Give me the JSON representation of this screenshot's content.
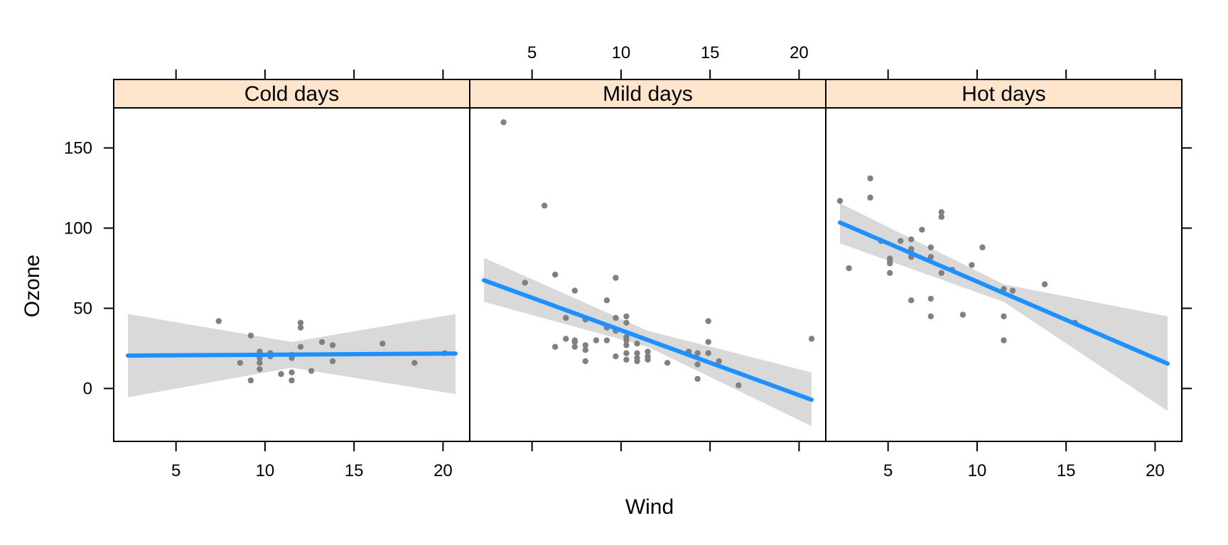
{
  "chart_data": {
    "type": "scatter",
    "xlabel": "Wind",
    "ylabel": "Ozone",
    "xlim": [
      1.5,
      21.5
    ],
    "ylim": [
      -33,
      175
    ],
    "x_ticks": [
      5,
      10,
      15,
      20
    ],
    "y_ticks": [
      0,
      50,
      100,
      150
    ],
    "strip_color": "#ffe5cc",
    "point_color": "#808080",
    "line_color": "#1e90ff",
    "band_color": "#d9d9d9",
    "panels": [
      {
        "title": "Cold days",
        "points": [
          [
            7.4,
            42
          ],
          [
            8.6,
            16
          ],
          [
            9.2,
            33
          ],
          [
            9.2,
            5
          ],
          [
            9.7,
            23
          ],
          [
            9.7,
            19
          ],
          [
            9.7,
            16
          ],
          [
            9.7,
            12
          ],
          [
            10.3,
            20
          ],
          [
            10.3,
            22
          ],
          [
            10.9,
            9
          ],
          [
            11.5,
            19
          ],
          [
            11.5,
            21
          ],
          [
            11.5,
            10
          ],
          [
            11.5,
            5
          ],
          [
            12.0,
            41
          ],
          [
            12.0,
            38
          ],
          [
            12.0,
            26
          ],
          [
            12.6,
            11
          ],
          [
            13.2,
            29
          ],
          [
            13.8,
            27
          ],
          [
            13.8,
            17
          ],
          [
            16.6,
            28
          ],
          [
            18.4,
            16
          ],
          [
            20.1,
            22
          ]
        ],
        "fit": {
          "x": [
            2.3,
            20.7
          ],
          "y": [
            20.5,
            21.8
          ]
        },
        "band": {
          "x": [
            2.3,
            11.5,
            20.7
          ],
          "upper": [
            46.5,
            29,
            46.5
          ],
          "lower": [
            -5.5,
            13,
            -3.5
          ]
        }
      },
      {
        "title": "Mild days",
        "points": [
          [
            3.4,
            166
          ],
          [
            5.7,
            114
          ],
          [
            4.6,
            66
          ],
          [
            6.3,
            71
          ],
          [
            6.9,
            44
          ],
          [
            7.4,
            61
          ],
          [
            6.9,
            31
          ],
          [
            7.4,
            30
          ],
          [
            7.4,
            29
          ],
          [
            7.4,
            26
          ],
          [
            6.3,
            26
          ],
          [
            8.0,
            43
          ],
          [
            8.0,
            27
          ],
          [
            8.0,
            24
          ],
          [
            8.0,
            17
          ],
          [
            8.6,
            30
          ],
          [
            9.2,
            55
          ],
          [
            9.2,
            38
          ],
          [
            9.2,
            30
          ],
          [
            9.7,
            69
          ],
          [
            9.7,
            44
          ],
          [
            9.7,
            36
          ],
          [
            9.7,
            20
          ],
          [
            10.3,
            45
          ],
          [
            10.3,
            41
          ],
          [
            10.3,
            32
          ],
          [
            10.3,
            30
          ],
          [
            10.3,
            27
          ],
          [
            10.3,
            22
          ],
          [
            10.3,
            18
          ],
          [
            10.9,
            28
          ],
          [
            10.9,
            22
          ],
          [
            10.9,
            19
          ],
          [
            10.9,
            17
          ],
          [
            11.5,
            23
          ],
          [
            11.5,
            20
          ],
          [
            11.5,
            18
          ],
          [
            12.6,
            16
          ],
          [
            13.8,
            23
          ],
          [
            14.3,
            22
          ],
          [
            14.3,
            15
          ],
          [
            14.3,
            6
          ],
          [
            14.9,
            42
          ],
          [
            14.9,
            29
          ],
          [
            14.9,
            22
          ],
          [
            15.5,
            17
          ],
          [
            16.6,
            2
          ],
          [
            20.7,
            31
          ]
        ],
        "fit": {
          "x": [
            2.3,
            20.7
          ],
          "y": [
            67.5,
            -7
          ]
        },
        "band": {
          "x": [
            2.3,
            11.5,
            20.7
          ],
          "upper": [
            81.5,
            36,
            10
          ],
          "lower": [
            54,
            26,
            -23.5
          ]
        }
      },
      {
        "title": "Hot days",
        "points": [
          [
            2.3,
            117
          ],
          [
            2.8,
            75
          ],
          [
            4.0,
            131
          ],
          [
            4.0,
            119
          ],
          [
            4.6,
            92
          ],
          [
            5.1,
            81
          ],
          [
            5.1,
            80
          ],
          [
            5.1,
            78
          ],
          [
            5.1,
            72
          ],
          [
            5.7,
            92
          ],
          [
            6.3,
            93
          ],
          [
            6.3,
            87
          ],
          [
            6.3,
            85
          ],
          [
            6.3,
            82
          ],
          [
            6.3,
            55
          ],
          [
            6.9,
            99
          ],
          [
            7.4,
            88
          ],
          [
            7.4,
            82
          ],
          [
            7.4,
            56
          ],
          [
            7.4,
            45
          ],
          [
            8.0,
            110
          ],
          [
            8.0,
            107
          ],
          [
            8.0,
            72
          ],
          [
            8.6,
            74
          ],
          [
            9.2,
            46
          ],
          [
            9.7,
            77
          ],
          [
            10.3,
            88
          ],
          [
            11.5,
            62
          ],
          [
            11.5,
            45
          ],
          [
            11.5,
            30
          ],
          [
            12.0,
            61
          ],
          [
            13.8,
            65
          ],
          [
            15.5,
            41
          ]
        ],
        "fit": {
          "x": [
            2.3,
            20.7
          ],
          "y": [
            103.5,
            15.5
          ]
        },
        "band": {
          "x": [
            2.3,
            11.5,
            20.7
          ],
          "upper": [
            115.5,
            65,
            45
          ],
          "lower": [
            90.5,
            54,
            -14
          ]
        }
      }
    ]
  }
}
